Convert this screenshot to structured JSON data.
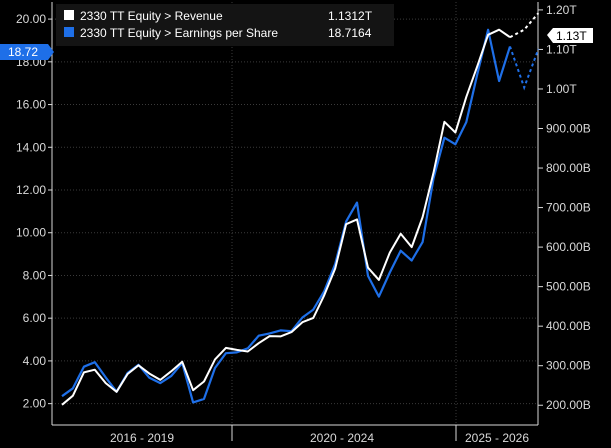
{
  "colors": {
    "background": "#000000",
    "revenue": "#ffffff",
    "eps": "#1e6fe8",
    "grid": "#3a3a3a",
    "text": "#d9d9d9",
    "legend_bg": "#141414"
  },
  "chart_data": {
    "type": "line",
    "legend_position": "top-left",
    "grid": true,
    "x_labels": [
      "2016 - 2019",
      "2020 - 2024",
      "2025 - 2026"
    ],
    "left_axis": {
      "ylim": [
        1.0,
        20.8
      ],
      "ticks": [
        "2.00",
        "4.00",
        "6.00",
        "8.00",
        "10.00",
        "12.00",
        "14.00",
        "16.00",
        "18.00",
        "20.00"
      ],
      "tick_values": [
        2,
        4,
        6,
        8,
        10,
        12,
        14,
        16,
        18,
        20
      ]
    },
    "right_axis": {
      "ylim": [
        150,
        1220
      ],
      "unit": "B",
      "ticks": [
        "200.00B",
        "300.00B",
        "400.00B",
        "500.00B",
        "600.00B",
        "700.00B",
        "800.00B",
        "900.00B",
        "1.00T",
        "1.10T",
        "1.20T"
      ],
      "tick_values": [
        200,
        300,
        400,
        500,
        600,
        700,
        800,
        900,
        1000,
        1100,
        1200
      ]
    },
    "series": [
      {
        "name": "2330 TT Equity > Revenue",
        "last_value": "1.1312T",
        "axis": "right",
        "color": "#ffffff",
        "values": [
          201,
          224,
          283,
          290,
          256,
          234,
          279,
          301,
          280,
          264,
          286,
          310,
          238,
          260,
          316,
          345,
          340,
          336,
          357,
          375,
          374,
          385,
          410,
          421,
          478,
          546,
          658,
          670,
          548,
          517,
          586,
          634,
          600,
          676,
          788,
          917,
          890,
          980,
          1057,
          1137,
          1150,
          1131
        ],
        "forecast": [
          1131,
          1150,
          1192
        ]
      },
      {
        "name": "2330 TT Equity > Earnings per Share",
        "last_value": "18.7164",
        "axis": "left",
        "color": "#1e6fe8",
        "values": [
          2.35,
          2.72,
          3.73,
          3.94,
          3.23,
          2.56,
          3.44,
          3.82,
          3.21,
          2.96,
          3.3,
          3.9,
          2.06,
          2.22,
          3.67,
          4.36,
          4.4,
          4.59,
          5.18,
          5.29,
          5.43,
          5.39,
          6.03,
          6.4,
          7.26,
          8.54,
          10.52,
          11.41,
          7.98,
          7.01,
          8.14,
          9.16,
          8.7,
          9.56,
          12.54,
          14.45,
          14.14,
          15.18,
          17.4,
          19.5,
          17.1,
          18.72
        ],
        "forecast": [
          18.72,
          16.8,
          18.6
        ]
      }
    ]
  },
  "legend": {
    "items": [
      {
        "label": "2330 TT Equity > Revenue",
        "value": "1.1312T",
        "color": "#ffffff"
      },
      {
        "label": "2330 TT Equity > Earnings per Share",
        "value": "18.7164",
        "color": "#1e6fe8"
      }
    ]
  },
  "badges": {
    "left": "18.72",
    "right": "1.13T"
  }
}
